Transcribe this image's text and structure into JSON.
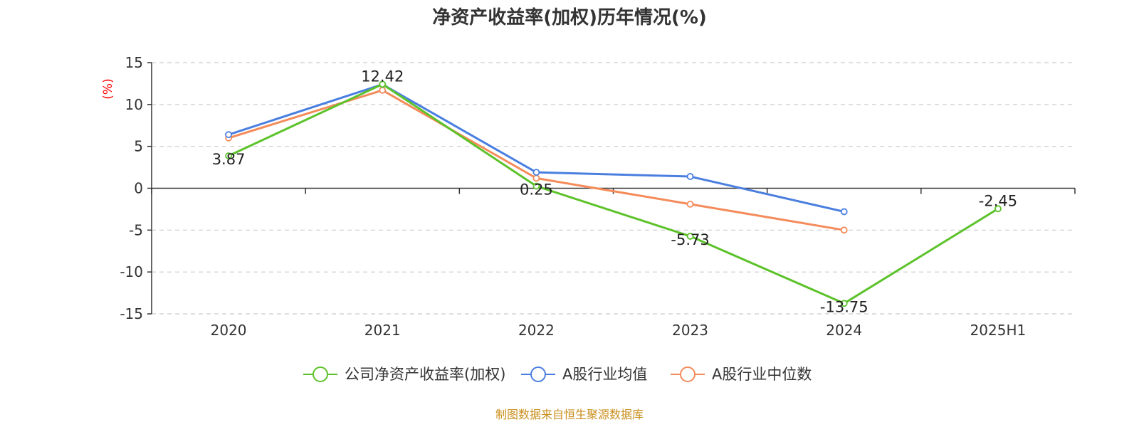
{
  "chart_data": {
    "type": "line",
    "title": "净资产收益率(加权)历年情况(%)",
    "ylabel": "(%)",
    "categories": [
      "2020",
      "2021",
      "2022",
      "2023",
      "2024",
      "2025H1"
    ],
    "ylim": [
      -15,
      15
    ],
    "yticks": [
      15,
      10,
      5,
      0,
      -5,
      -10,
      -15
    ],
    "grid": true,
    "legend_position": "bottom",
    "series": [
      {
        "name": "公司净资产收益率(加权)",
        "color": "#5cc22a",
        "values": [
          3.87,
          12.42,
          0.25,
          -5.73,
          -13.75,
          -2.45
        ],
        "labels": [
          "3.87",
          "12.42",
          "0.25",
          "-5.73",
          "-13.75",
          "-2.45"
        ]
      },
      {
        "name": "A股行业均值",
        "color": "#4a7fe0",
        "values": [
          6.4,
          12.4,
          1.9,
          1.4,
          -2.8,
          null
        ]
      },
      {
        "name": "A股行业中位数",
        "color": "#f48b5a",
        "values": [
          6.0,
          11.7,
          1.2,
          -1.9,
          -5.0,
          null
        ]
      }
    ],
    "source": "制图数据来自恒生聚源数据库",
    "colors": {
      "ylabel": "#ff0000",
      "source": "#c98f1e",
      "axis": "#333333",
      "grid": "#cccccc"
    }
  }
}
